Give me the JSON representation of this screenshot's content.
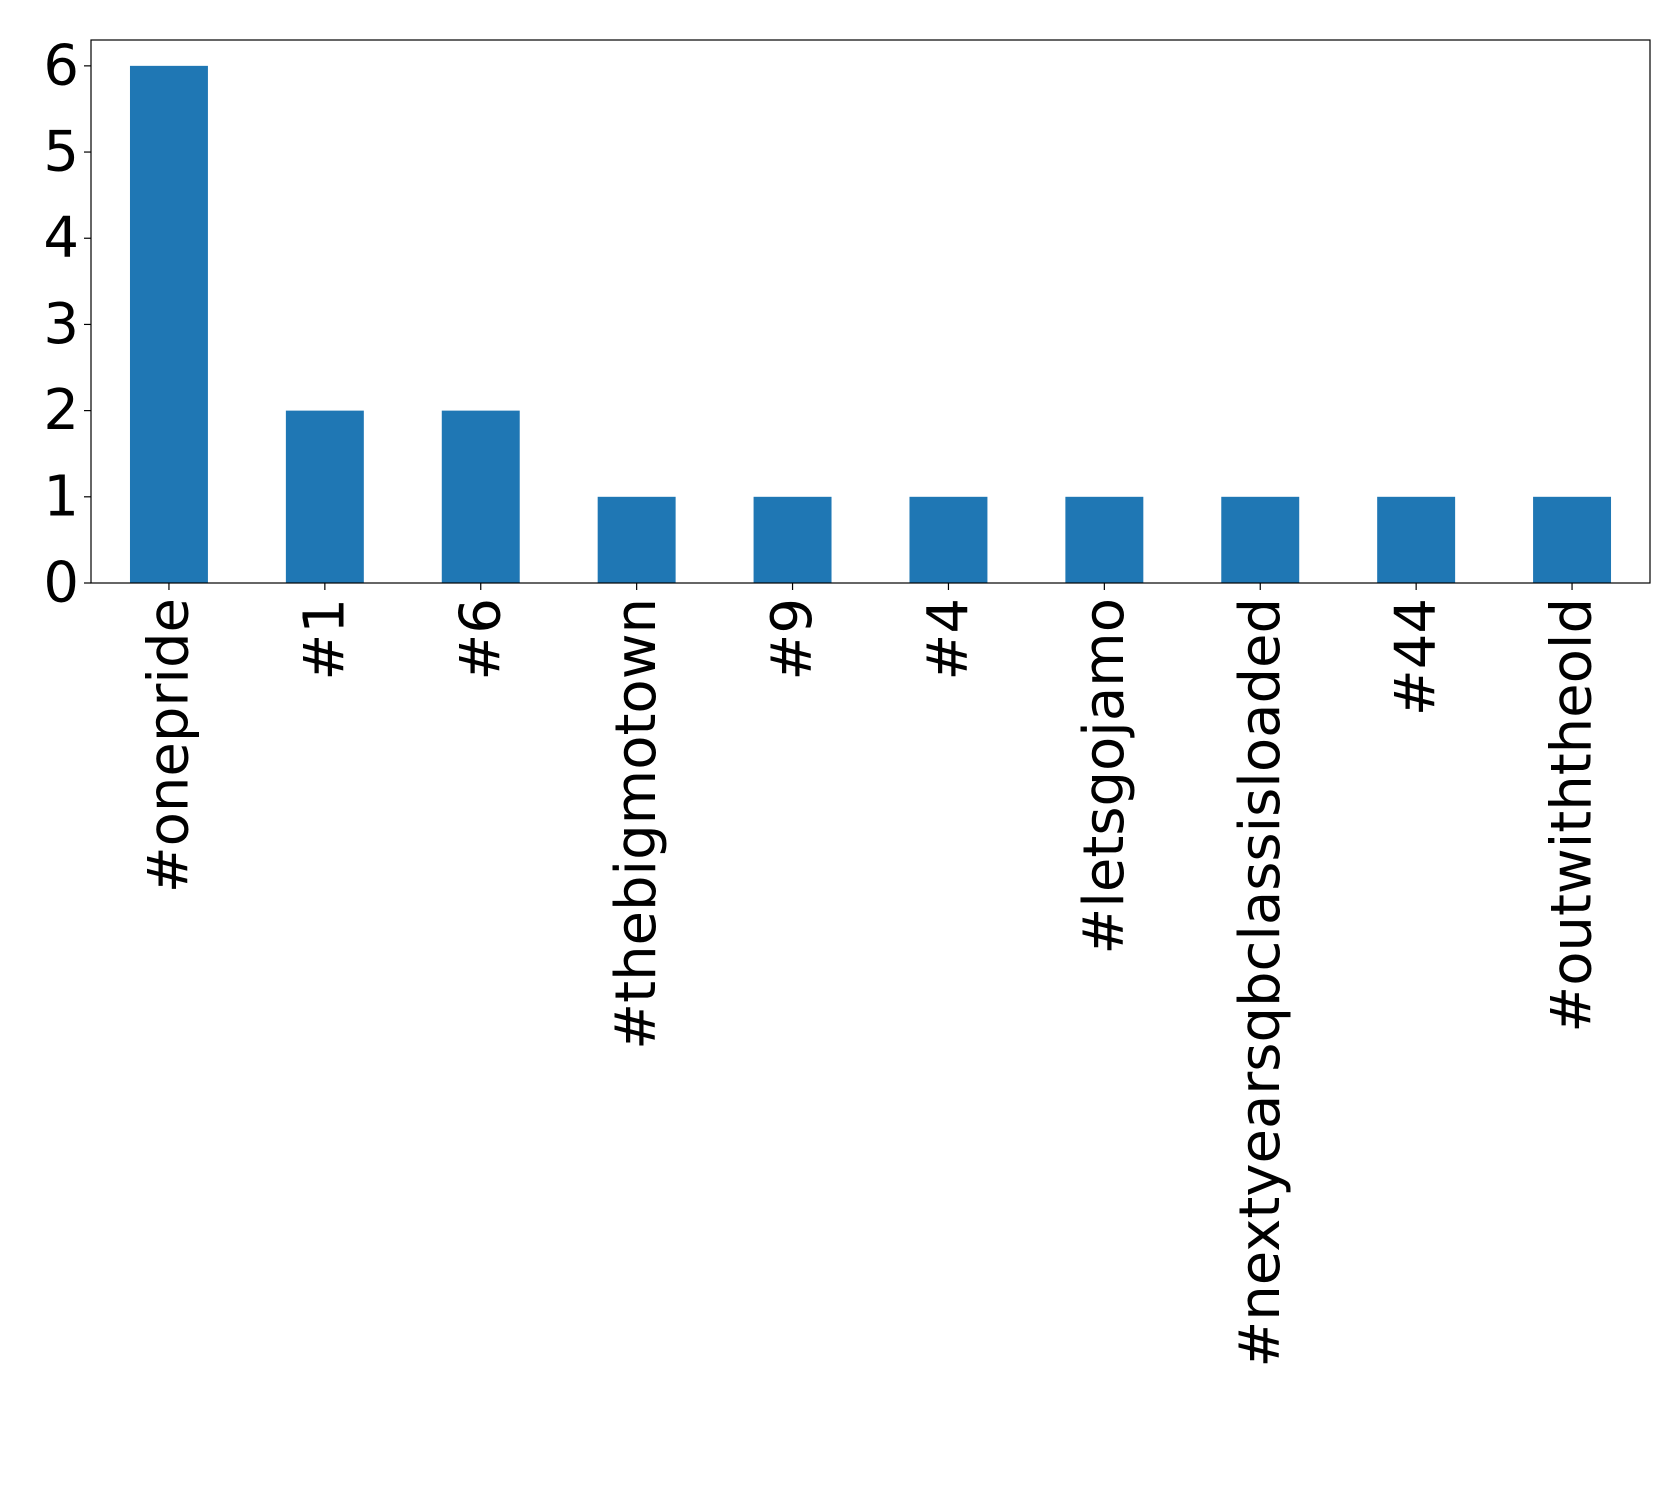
{
  "chart_data": {
    "type": "bar",
    "categories": [
      "#onepride",
      "#1",
      "#6",
      "#thebigmotown",
      "#9",
      "#4",
      "#letsgojamo",
      "#nextyearsqbclassisloaded",
      "#44",
      "#outwiththeold"
    ],
    "values": [
      6,
      2,
      2,
      1,
      1,
      1,
      1,
      1,
      1,
      1
    ],
    "title": "",
    "xlabel": "",
    "ylabel": "",
    "ylim": [
      0,
      6.3
    ],
    "yticks": [
      "0",
      "1",
      "2",
      "3",
      "4",
      "5",
      "6"
    ],
    "grid": false,
    "legend": "none",
    "bar_color": "#1f77b4"
  }
}
